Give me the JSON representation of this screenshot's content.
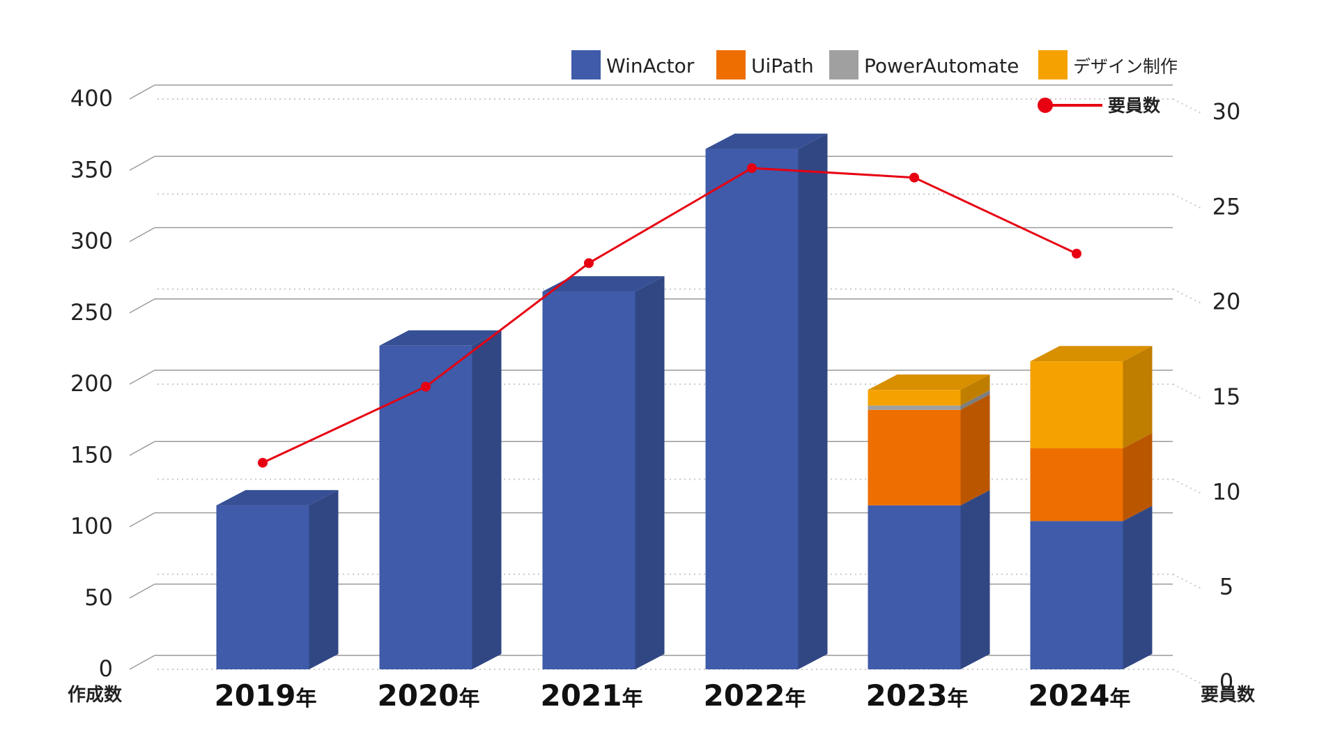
{
  "chart_data": {
    "type": "bar",
    "stacked": true,
    "three_d": true,
    "categories": [
      "2019年",
      "2020年",
      "2021年",
      "2022年",
      "2023年",
      "2024年"
    ],
    "series": [
      {
        "name": "WinActor",
        "type": "bar",
        "axis": "left",
        "color": "#3f5ba9",
        "values": [
          115,
          227,
          265,
          365,
          115,
          104
        ]
      },
      {
        "name": "UiPath",
        "type": "bar",
        "axis": "left",
        "color": "#ee6e00",
        "values": [
          0,
          0,
          0,
          0,
          67,
          51
        ]
      },
      {
        "name": "PowerAutomate",
        "type": "bar",
        "axis": "left",
        "color": "#a0a0a0",
        "values": [
          0,
          0,
          0,
          0,
          3,
          0
        ]
      },
      {
        "name": "デザイン制作",
        "type": "bar",
        "axis": "left",
        "color": "#f5a200",
        "values": [
          0,
          0,
          0,
          0,
          11,
          61
        ]
      },
      {
        "name": "要員数",
        "type": "line",
        "axis": "right",
        "color": "#e60012",
        "values": [
          10.5,
          14.5,
          21,
          26,
          25.5,
          21.5
        ]
      }
    ],
    "y_left": {
      "label": "作成数",
      "ylim": [
        0,
        400
      ],
      "ticks": [
        "0",
        "50",
        "100",
        "150",
        "200",
        "250",
        "300",
        "350",
        "400"
      ]
    },
    "y_right": {
      "label": "要員数",
      "ylim": [
        0,
        30
      ],
      "ticks": [
        "0",
        "5",
        "10",
        "15",
        "20",
        "25",
        "30"
      ]
    },
    "legend_position": "top-right",
    "grid": true
  }
}
